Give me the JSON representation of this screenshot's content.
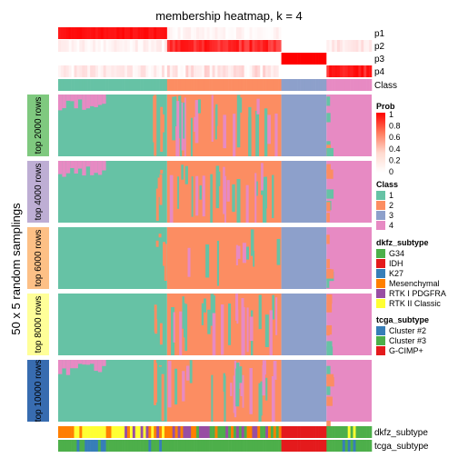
{
  "chart_data": {
    "type": "heatmap",
    "title": "membership heatmap, k = 4",
    "ylabel": "50 x 5 random samplings",
    "top_annotation_rows": [
      "p1",
      "p2",
      "p3",
      "p4",
      "Class"
    ],
    "row_groups": [
      {
        "label": "top 2000 rows",
        "color": "#7FC97F"
      },
      {
        "label": "top 4000 rows",
        "color": "#BEAED4"
      },
      {
        "label": "top 6000 rows",
        "color": "#FDC086"
      },
      {
        "label": "top 8000 rows",
        "color": "#FFFF99"
      },
      {
        "label": "top 10000 rows",
        "color": "#386CB0"
      }
    ],
    "bottom_annotation_rows": [
      "dkfz_subtype",
      "tcga_subtype"
    ],
    "class_column_counts": {
      "1": 41,
      "2": 43,
      "3": 17,
      "4": 17
    },
    "class_colors": {
      "1": "#66C2A5",
      "2": "#FC8D62",
      "3": "#8DA0CB",
      "4": "#E78AC3"
    },
    "legend_prob": {
      "title": "Prob",
      "ticks": [
        "1",
        "0.8",
        "0.6",
        "0.4",
        "0.2",
        "0"
      ],
      "gradient": [
        "#FF0000",
        "#FF7A5C",
        "#FFD9CE",
        "#FFFFFF"
      ]
    },
    "legend_class": {
      "title": "Class",
      "items": [
        {
          "label": "1",
          "color": "#66C2A5"
        },
        {
          "label": "2",
          "color": "#FC8D62"
        },
        {
          "label": "3",
          "color": "#8DA0CB"
        },
        {
          "label": "4",
          "color": "#E78AC3"
        }
      ]
    },
    "legend_dkfz": {
      "title": "dkfz_subtype",
      "items": [
        {
          "label": "G34",
          "color": "#4DAF4A"
        },
        {
          "label": "IDH",
          "color": "#E41A1C"
        },
        {
          "label": "K27",
          "color": "#377EB8"
        },
        {
          "label": "Mesenchymal",
          "color": "#FF7F00"
        },
        {
          "label": "RTK I PDGFRA",
          "color": "#984EA3"
        },
        {
          "label": "RTK II Classic",
          "color": "#FFFF33"
        }
      ]
    },
    "legend_tcga": {
      "title": "tcga_subtype",
      "items": [
        {
          "label": "Cluster #2",
          "color": "#377EB8"
        },
        {
          "label": "Cluster #3",
          "color": "#4DAF4A"
        },
        {
          "label": "G-CIMP+",
          "color": "#E41A1C"
        }
      ]
    }
  }
}
